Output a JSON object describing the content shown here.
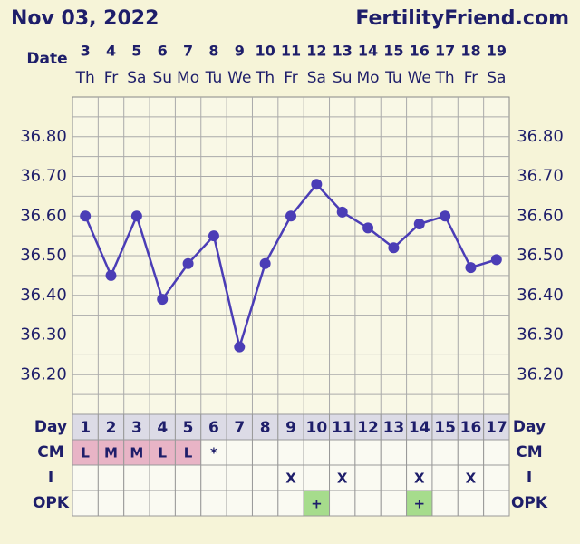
{
  "chart_data": {
    "type": "line",
    "title": "Nov 03, 2022",
    "source": "FertilityFriend.com",
    "x_label": "Date",
    "categories": [
      "3",
      "4",
      "5",
      "6",
      "7",
      "8",
      "9",
      "10",
      "11",
      "12",
      "13",
      "14",
      "15",
      "16",
      "17",
      "18",
      "19"
    ],
    "weekdays": [
      "Th",
      "Fr",
      "Sa",
      "Su",
      "Mo",
      "Tu",
      "We",
      "Th",
      "Fr",
      "Sa",
      "Su",
      "Mo",
      "Tu",
      "We",
      "Th",
      "Fr",
      "Sa"
    ],
    "values": [
      36.6,
      36.45,
      36.6,
      36.39,
      36.48,
      36.55,
      36.27,
      36.48,
      36.6,
      36.68,
      36.61,
      36.57,
      36.52,
      36.58,
      36.6,
      36.47,
      36.49
    ],
    "color": "#4b3db6",
    "ylim": [
      36.1,
      36.9
    ],
    "yticks": [
      {
        "value": 36.2,
        "label": "36.20"
      },
      {
        "value": 36.3,
        "label": "36.30"
      },
      {
        "value": 36.4,
        "label": "36.40"
      },
      {
        "value": 36.5,
        "label": "36.50"
      },
      {
        "value": 36.6,
        "label": "36.60"
      },
      {
        "value": 36.7,
        "label": "36.70"
      },
      {
        "value": 36.8,
        "label": "36.80"
      }
    ],
    "minor_yticks": [
      36.15,
      36.25,
      36.35,
      36.45,
      36.55,
      36.65,
      36.75,
      36.85
    ],
    "grid": true,
    "rows": [
      {
        "label": "Day",
        "cells": [
          1,
          2,
          3,
          4,
          5,
          6,
          7,
          8,
          9,
          10,
          11,
          12,
          13,
          14,
          15,
          16,
          17
        ]
      },
      {
        "label": "CM",
        "cells": [
          "L",
          "M",
          "M",
          "L",
          "L",
          "*",
          null,
          null,
          null,
          null,
          null,
          null,
          null,
          null,
          null,
          null,
          null
        ],
        "colors": [
          "#e8b4c6",
          "#e8b4c6",
          "#e8b4c6",
          "#e8b4c6",
          "#e8b4c6",
          null,
          null,
          null,
          null,
          null,
          null,
          null,
          null,
          null,
          null,
          null,
          null
        ]
      },
      {
        "label": "I",
        "cells": [
          null,
          null,
          null,
          null,
          null,
          null,
          null,
          null,
          "X",
          null,
          "X",
          null,
          null,
          "X",
          null,
          "X",
          null
        ]
      },
      {
        "label": "OPK",
        "cells": [
          null,
          null,
          null,
          null,
          null,
          null,
          null,
          null,
          null,
          "+",
          null,
          null,
          null,
          "+",
          null,
          null,
          null
        ],
        "colors": [
          null,
          null,
          null,
          null,
          null,
          null,
          null,
          null,
          null,
          "#a6dc8c",
          null,
          null,
          null,
          "#a6dc8c",
          null,
          null,
          null
        ]
      }
    ]
  }
}
